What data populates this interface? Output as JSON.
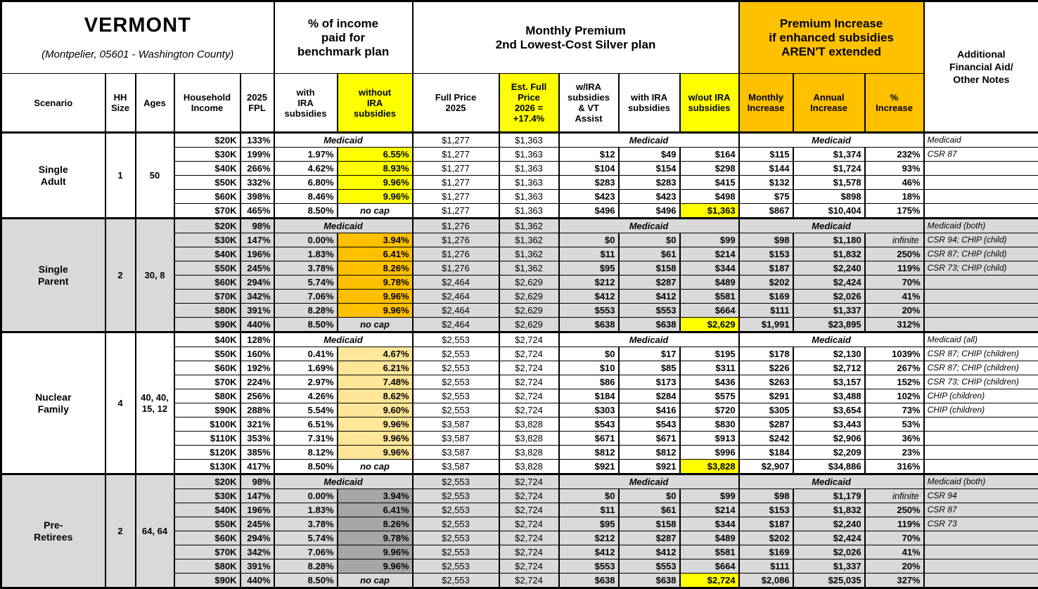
{
  "header": {
    "title": "VERMONT",
    "subtitle": "(Montpelier, 05601 - Washington County)"
  },
  "groups": {
    "pct_income": "% of income\npaid for\nbenchmark plan",
    "monthly_premium": "Monthly Premium\n2nd Lowest-Cost Silver plan",
    "premium_increase": "Premium Increase\nif enhanced subsidies\nAREN'T extended",
    "notes": "Additional\nFinancial Aid/\nOther Notes"
  },
  "columns": {
    "scenario": "Scenario",
    "hh_size": "HH\nSize",
    "ages": "Ages",
    "income": "Household\nIncome",
    "fpl": "2025\nFPL",
    "pct_with": "with\nIRA\nsubsidies",
    "pct_without": "without\nIRA\nsubsidies",
    "full_price": "Full Price\n2025",
    "est_price": "Est. Full\nPrice\n2026 =\n+17.4%",
    "sub_ira_vt": "w/IRA\nsubsidies\n& VT\nAssist",
    "sub_ira": "with IRA\nsubsidies",
    "sub_no_ira": "w/out IRA\nsubsidies",
    "monthly_increase": "Monthly\nIncrease",
    "annual_increase": "Annual\nIncrease",
    "pct_increase": "%\nIncrease"
  },
  "labels": {
    "medicaid": "Medicaid",
    "no_cap": "no cap",
    "infinite": "infinite"
  },
  "colors": {
    "accent_orange": "#FFC000",
    "highlight_yellow": "#FFFF00",
    "nuclear_highlight": "#FFE699",
    "preretiree_highlight": "#A6A6A6",
    "section_gray": "#D9D9D9",
    "white": "#FFFFFF"
  },
  "sections": [
    {
      "scenario": "Single\nAdult",
      "hh_size": "1",
      "ages": "50",
      "bg": "#FFFFFF",
      "hl": "#FFFF00",
      "rows": [
        {
          "income": "$20K",
          "fpl": "133%",
          "medicaid": "Medicaid",
          "full_price": "$1,277",
          "est_price": "$1,363",
          "notes": "Medicaid"
        },
        {
          "income": "$30K",
          "fpl": "199%",
          "pct_with": "1.97%",
          "pct_without": "6.55%",
          "full_price": "$1,277",
          "est_price": "$1,363",
          "sub_ira_vt": "$12",
          "sub_ira": "$49",
          "sub_no_ira": "$164",
          "monthly_increase": "$115",
          "annual_increase": "$1,374",
          "pct_increase": "232%",
          "notes": "CSR 87"
        },
        {
          "income": "$40K",
          "fpl": "266%",
          "pct_with": "4.62%",
          "pct_without": "8.93%",
          "full_price": "$1,277",
          "est_price": "$1,363",
          "sub_ira_vt": "$104",
          "sub_ira": "$154",
          "sub_no_ira": "$298",
          "monthly_increase": "$144",
          "annual_increase": "$1,724",
          "pct_increase": "93%",
          "notes": ""
        },
        {
          "income": "$50K",
          "fpl": "332%",
          "pct_with": "6.80%",
          "pct_without": "9.96%",
          "full_price": "$1,277",
          "est_price": "$1,363",
          "sub_ira_vt": "$283",
          "sub_ira": "$283",
          "sub_no_ira": "$415",
          "monthly_increase": "$132",
          "annual_increase": "$1,578",
          "pct_increase": "46%",
          "notes": ""
        },
        {
          "income": "$60K",
          "fpl": "398%",
          "pct_with": "8.46%",
          "pct_without": "9.96%",
          "full_price": "$1,277",
          "est_price": "$1,363",
          "sub_ira_vt": "$423",
          "sub_ira": "$423",
          "sub_no_ira": "$498",
          "monthly_increase": "$75",
          "annual_increase": "$898",
          "pct_increase": "18%",
          "notes": ""
        },
        {
          "income": "$70K",
          "fpl": "465%",
          "pct_with": "8.50%",
          "pct_without": "no cap",
          "full_price": "$1,277",
          "est_price": "$1,363",
          "sub_ira_vt": "$496",
          "sub_ira": "$496",
          "sub_no_ira": "$1,363",
          "sub_no_ira_highlight": true,
          "monthly_increase": "$867",
          "annual_increase": "$10,404",
          "pct_increase": "175%",
          "notes": ""
        }
      ]
    },
    {
      "scenario": "Single\nParent",
      "hh_size": "2",
      "ages": "30, 8",
      "bg": "#D9D9D9",
      "hl": "#FFC000",
      "rows": [
        {
          "income": "$20K",
          "fpl": "98%",
          "medicaid": "Medicaid",
          "full_price": "$1,276",
          "est_price": "$1,362",
          "notes": "Medicaid (both)"
        },
        {
          "income": "$30K",
          "fpl": "147%",
          "pct_with": "0.00%",
          "pct_without": "3.94%",
          "full_price": "$1,276",
          "est_price": "$1,362",
          "sub_ira_vt": "$0",
          "sub_ira": "$0",
          "sub_no_ira": "$99",
          "monthly_increase": "$98",
          "annual_increase": "$1,180",
          "pct_increase": "infinite",
          "notes": "CSR 94; CHIP (child)"
        },
        {
          "income": "$40K",
          "fpl": "196%",
          "pct_with": "1.83%",
          "pct_without": "6.41%",
          "full_price": "$1,276",
          "est_price": "$1,362",
          "sub_ira_vt": "$11",
          "sub_ira": "$61",
          "sub_no_ira": "$214",
          "monthly_increase": "$153",
          "annual_increase": "$1,832",
          "pct_increase": "250%",
          "notes": "CSR 87; CHIP (child)"
        },
        {
          "income": "$50K",
          "fpl": "245%",
          "pct_with": "3.78%",
          "pct_without": "8.26%",
          "full_price": "$1,276",
          "est_price": "$1,362",
          "sub_ira_vt": "$95",
          "sub_ira": "$158",
          "sub_no_ira": "$344",
          "monthly_increase": "$187",
          "annual_increase": "$2,240",
          "pct_increase": "119%",
          "notes": "CSR 73; CHIP (child)"
        },
        {
          "income": "$60K",
          "fpl": "294%",
          "pct_with": "5.74%",
          "pct_without": "9.78%",
          "full_price": "$2,464",
          "est_price": "$2,629",
          "sub_ira_vt": "$212",
          "sub_ira": "$287",
          "sub_no_ira": "$489",
          "monthly_increase": "$202",
          "annual_increase": "$2,424",
          "pct_increase": "70%",
          "notes": ""
        },
        {
          "income": "$70K",
          "fpl": "342%",
          "pct_with": "7.06%",
          "pct_without": "9.96%",
          "full_price": "$2,464",
          "est_price": "$2,629",
          "sub_ira_vt": "$412",
          "sub_ira": "$412",
          "sub_no_ira": "$581",
          "monthly_increase": "$169",
          "annual_increase": "$2,026",
          "pct_increase": "41%",
          "notes": ""
        },
        {
          "income": "$80K",
          "fpl": "391%",
          "pct_with": "8.28%",
          "pct_without": "9.96%",
          "full_price": "$2,464",
          "est_price": "$2,629",
          "sub_ira_vt": "$553",
          "sub_ira": "$553",
          "sub_no_ira": "$664",
          "monthly_increase": "$111",
          "annual_increase": "$1,337",
          "pct_increase": "20%",
          "notes": ""
        },
        {
          "income": "$90K",
          "fpl": "440%",
          "pct_with": "8.50%",
          "pct_without": "no cap",
          "full_price": "$2,464",
          "est_price": "$2,629",
          "sub_ira_vt": "$638",
          "sub_ira": "$638",
          "sub_no_ira": "$2,629",
          "sub_no_ira_highlight": true,
          "monthly_increase": "$1,991",
          "annual_increase": "$23,895",
          "pct_increase": "312%",
          "notes": ""
        }
      ]
    },
    {
      "scenario": "Nuclear\nFamily",
      "hh_size": "4",
      "ages": "40, 40,\n15, 12",
      "bg": "#FFFFFF",
      "hl": "#FFE699",
      "rows": [
        {
          "income": "$40K",
          "fpl": "128%",
          "medicaid": "Medicaid",
          "full_price": "$2,553",
          "est_price": "$2,724",
          "notes": "Medicaid (all)"
        },
        {
          "income": "$50K",
          "fpl": "160%",
          "pct_with": "0.41%",
          "pct_without": "4.67%",
          "full_price": "$2,553",
          "est_price": "$2,724",
          "sub_ira_vt": "$0",
          "sub_ira": "$17",
          "sub_no_ira": "$195",
          "monthly_increase": "$178",
          "annual_increase": "$2,130",
          "pct_increase": "1039%",
          "notes": "CSR 87; CHIP (children)"
        },
        {
          "income": "$60K",
          "fpl": "192%",
          "pct_with": "1.69%",
          "pct_without": "6.21%",
          "full_price": "$2,553",
          "est_price": "$2,724",
          "sub_ira_vt": "$10",
          "sub_ira": "$85",
          "sub_no_ira": "$311",
          "monthly_increase": "$226",
          "annual_increase": "$2,712",
          "pct_increase": "267%",
          "notes": "CSR 87; CHIP (children)"
        },
        {
          "income": "$70K",
          "fpl": "224%",
          "pct_with": "2.97%",
          "pct_without": "7.48%",
          "full_price": "$2,553",
          "est_price": "$2,724",
          "sub_ira_vt": "$86",
          "sub_ira": "$173",
          "sub_no_ira": "$436",
          "monthly_increase": "$263",
          "annual_increase": "$3,157",
          "pct_increase": "152%",
          "notes": "CSR 73; CHIP (children)"
        },
        {
          "income": "$80K",
          "fpl": "256%",
          "pct_with": "4.26%",
          "pct_without": "8.62%",
          "full_price": "$2,553",
          "est_price": "$2,724",
          "sub_ira_vt": "$184",
          "sub_ira": "$284",
          "sub_no_ira": "$575",
          "monthly_increase": "$291",
          "annual_increase": "$3,488",
          "pct_increase": "102%",
          "notes": "CHIP (children)"
        },
        {
          "income": "$90K",
          "fpl": "288%",
          "pct_with": "5.54%",
          "pct_without": "9.60%",
          "full_price": "$2,553",
          "est_price": "$2,724",
          "sub_ira_vt": "$303",
          "sub_ira": "$416",
          "sub_no_ira": "$720",
          "monthly_increase": "$305",
          "annual_increase": "$3,654",
          "pct_increase": "73%",
          "notes": "CHIP (children)"
        },
        {
          "income": "$100K",
          "fpl": "321%",
          "pct_with": "6.51%",
          "pct_without": "9.96%",
          "full_price": "$3,587",
          "est_price": "$3,828",
          "sub_ira_vt": "$543",
          "sub_ira": "$543",
          "sub_no_ira": "$830",
          "monthly_increase": "$287",
          "annual_increase": "$3,443",
          "pct_increase": "53%",
          "notes": ""
        },
        {
          "income": "$110K",
          "fpl": "353%",
          "pct_with": "7.31%",
          "pct_without": "9.96%",
          "full_price": "$3,587",
          "est_price": "$3,828",
          "sub_ira_vt": "$671",
          "sub_ira": "$671",
          "sub_no_ira": "$913",
          "monthly_increase": "$242",
          "annual_increase": "$2,906",
          "pct_increase": "36%",
          "notes": ""
        },
        {
          "income": "$120K",
          "fpl": "385%",
          "pct_with": "8.12%",
          "pct_without": "9.96%",
          "full_price": "$3,587",
          "est_price": "$3,828",
          "sub_ira_vt": "$812",
          "sub_ira": "$812",
          "sub_no_ira": "$996",
          "monthly_increase": "$184",
          "annual_increase": "$2,209",
          "pct_increase": "23%",
          "notes": ""
        },
        {
          "income": "$130K",
          "fpl": "417%",
          "pct_with": "8.50%",
          "pct_without": "no cap",
          "full_price": "$3,587",
          "est_price": "$3,828",
          "sub_ira_vt": "$921",
          "sub_ira": "$921",
          "sub_no_ira": "$3,828",
          "sub_no_ira_highlight": true,
          "monthly_increase": "$2,907",
          "annual_increase": "$34,886",
          "pct_increase": "316%",
          "notes": ""
        }
      ]
    },
    {
      "scenario": "Pre-\nRetirees",
      "hh_size": "2",
      "ages": "64, 64",
      "bg": "#D9D9D9",
      "hl": "#A6A6A6",
      "rows": [
        {
          "income": "$20K",
          "fpl": "98%",
          "medicaid": "Medicaid",
          "full_price": "$2,553",
          "est_price": "$2,724",
          "notes": "Medicaid (both)"
        },
        {
          "income": "$30K",
          "fpl": "147%",
          "pct_with": "0.00%",
          "pct_without": "3.94%",
          "full_price": "$2,553",
          "est_price": "$2,724",
          "sub_ira_vt": "$0",
          "sub_ira": "$0",
          "sub_no_ira": "$99",
          "monthly_increase": "$98",
          "annual_increase": "$1,179",
          "pct_increase": "infinite",
          "notes": "CSR 94"
        },
        {
          "income": "$40K",
          "fpl": "196%",
          "pct_with": "1.83%",
          "pct_without": "6.41%",
          "full_price": "$2,553",
          "est_price": "$2,724",
          "sub_ira_vt": "$11",
          "sub_ira": "$61",
          "sub_no_ira": "$214",
          "monthly_increase": "$153",
          "annual_increase": "$1,832",
          "pct_increase": "250%",
          "notes": "CSR 87"
        },
        {
          "income": "$50K",
          "fpl": "245%",
          "pct_with": "3.78%",
          "pct_without": "8.26%",
          "full_price": "$2,553",
          "est_price": "$2,724",
          "sub_ira_vt": "$95",
          "sub_ira": "$158",
          "sub_no_ira": "$344",
          "monthly_increase": "$187",
          "annual_increase": "$2,240",
          "pct_increase": "119%",
          "notes": "CSR 73"
        },
        {
          "income": "$60K",
          "fpl": "294%",
          "pct_with": "5.74%",
          "pct_without": "9.78%",
          "full_price": "$2,553",
          "est_price": "$2,724",
          "sub_ira_vt": "$212",
          "sub_ira": "$287",
          "sub_no_ira": "$489",
          "monthly_increase": "$202",
          "annual_increase": "$2,424",
          "pct_increase": "70%",
          "notes": ""
        },
        {
          "income": "$70K",
          "fpl": "342%",
          "pct_with": "7.06%",
          "pct_without": "9.96%",
          "full_price": "$2,553",
          "est_price": "$2,724",
          "sub_ira_vt": "$412",
          "sub_ira": "$412",
          "sub_no_ira": "$581",
          "monthly_increase": "$169",
          "annual_increase": "$2,026",
          "pct_increase": "41%",
          "notes": ""
        },
        {
          "income": "$80K",
          "fpl": "391%",
          "pct_with": "8.28%",
          "pct_without": "9.96%",
          "full_price": "$2,553",
          "est_price": "$2,724",
          "sub_ira_vt": "$553",
          "sub_ira": "$553",
          "sub_no_ira": "$664",
          "monthly_increase": "$111",
          "annual_increase": "$1,337",
          "pct_increase": "20%",
          "notes": ""
        },
        {
          "income": "$90K",
          "fpl": "440%",
          "pct_with": "8.50%",
          "pct_without": "no cap",
          "full_price": "$2,553",
          "est_price": "$2,724",
          "sub_ira_vt": "$638",
          "sub_ira": "$638",
          "sub_no_ira": "$2,724",
          "sub_no_ira_highlight": true,
          "monthly_increase": "$2,086",
          "annual_increase": "$25,035",
          "pct_increase": "327%",
          "notes": ""
        }
      ]
    }
  ]
}
